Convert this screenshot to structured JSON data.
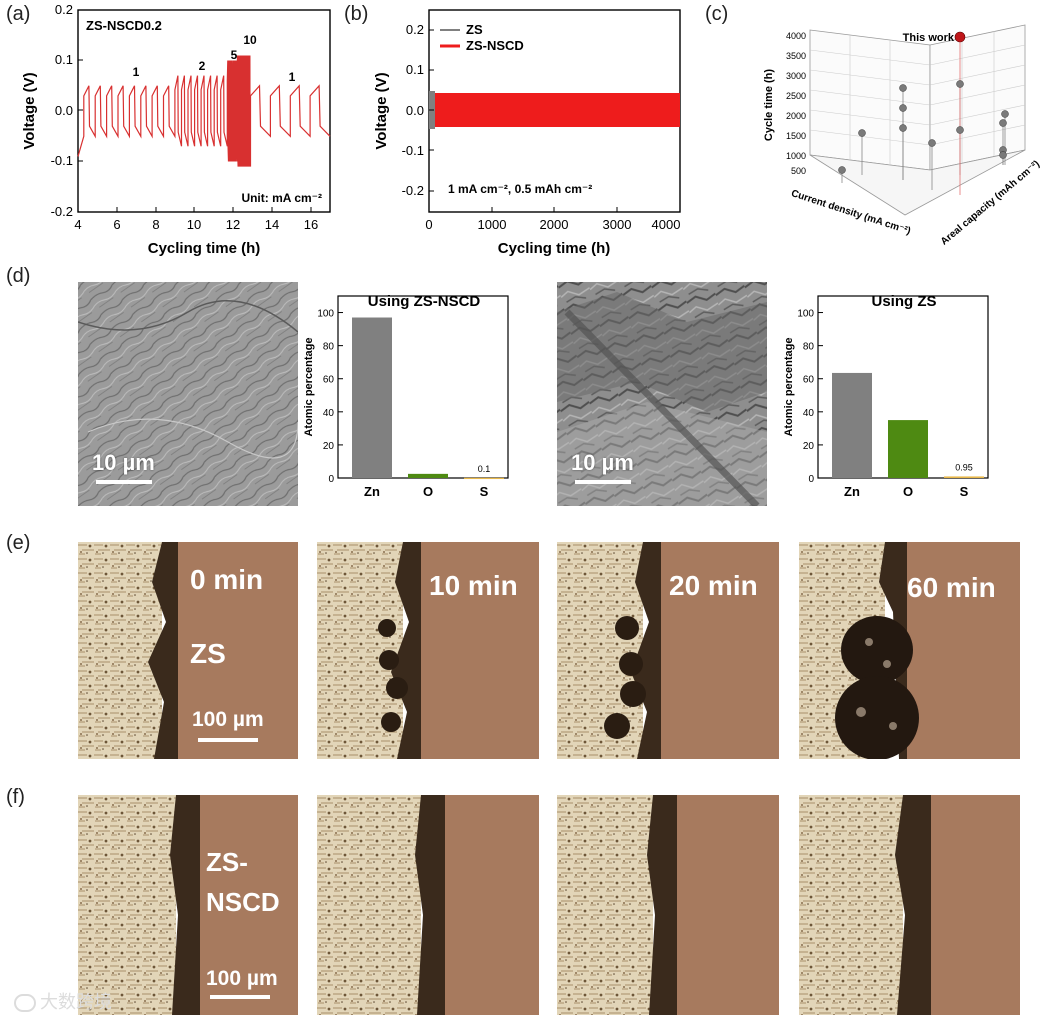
{
  "panel_labels": {
    "a": "(a)",
    "b": "(b)",
    "c": "(c)",
    "d": "(d)",
    "e": "(e)",
    "f": "(f)"
  },
  "panel_a": {
    "title": "ZS-NSCD0.2",
    "xlabel": "Cycling time (h)",
    "ylabel": "Voltage (V)",
    "unit_note": "Unit: mA cm⁻²",
    "segment_labels": [
      "1",
      "2",
      "5",
      "10",
      "1"
    ],
    "xticks": [
      "4",
      "6",
      "8",
      "10",
      "12",
      "14",
      "16"
    ],
    "yticks": [
      "-0.2",
      "-0.1",
      "0.0",
      "0.1",
      "0.2"
    ]
  },
  "panel_b": {
    "xlabel": "Cycling time (h)",
    "ylabel": "Voltage (V)",
    "legend": [
      "ZS",
      "ZS-NSCD"
    ],
    "condition": "1 mA cm⁻², 0.5 mAh cm⁻²",
    "xticks": [
      "0",
      "1000",
      "2000",
      "3000",
      "4000"
    ],
    "yticks": [
      "-0.2",
      "-0.1",
      "0.0",
      "0.1",
      "0.2"
    ]
  },
  "panel_c": {
    "zlabel": "Cycle time (h)",
    "xlabel": "Current density (mA cm⁻²)",
    "ylabel": "Areal capacity (mAh cm⁻²)",
    "highlight_label": "This work",
    "zticks": [
      "500",
      "1000",
      "1500",
      "2000",
      "2500",
      "3000",
      "3500",
      "4000"
    ]
  },
  "panel_d": {
    "scalebar": "10 µm",
    "ylabel": "Atomic percentage",
    "yticks": [
      "0",
      "20",
      "40",
      "60",
      "80",
      "100"
    ],
    "colors": {
      "Zn": "#808080",
      "O": "#4e8a12",
      "S": "#e8b84a"
    }
  },
  "panel_e": {
    "times": [
      "0 min",
      "10 min",
      "20 min",
      "60 min"
    ],
    "sample": "ZS",
    "scalebar": "100 µm"
  },
  "panel_f": {
    "sample_line1": "ZS-",
    "sample_line2": "NSCD",
    "scalebar": "100 µm"
  },
  "watermark": "大数跨境",
  "chart_data": [
    {
      "type": "line",
      "title": "ZS-NSCD0.2",
      "xlabel": "Cycling time (h)",
      "ylabel": "Voltage (V)",
      "xlim": [
        4,
        17
      ],
      "ylim": [
        -0.2,
        0.2
      ],
      "series": [
        {
          "name": "ZS-NSCD",
          "values_note": "square-wave cycling; amplitude ~0.05 V at 1, ~0.07 V at 2, ~0.1 V at 5, ~0.11 V at 10 mA cm⁻²"
        }
      ],
      "rates": [
        1,
        2,
        5,
        10,
        1
      ],
      "rate_regions_h": [
        [
          4.3,
          9.0
        ],
        [
          9.0,
          11.7
        ],
        [
          11.7,
          12.2
        ],
        [
          12.2,
          12.9
        ],
        [
          12.9,
          17.0
        ]
      ]
    },
    {
      "type": "line",
      "xlabel": "Cycling time (h)",
      "ylabel": "Voltage (V)",
      "xlim": [
        0,
        4000
      ],
      "ylim": [
        -0.25,
        0.25
      ],
      "series": [
        {
          "name": "ZS",
          "x": [
            0,
            100
          ],
          "amplitude": [
            0.04,
            0.04
          ]
        },
        {
          "name": "ZS-NSCD",
          "x": [
            0,
            500,
            1000,
            2000,
            3000,
            4000
          ],
          "amplitude": [
            0.03,
            0.033,
            0.028,
            0.025,
            0.026,
            0.027
          ]
        }
      ]
    },
    {
      "type": "scatter",
      "xlabel": "Current density (mA cm⁻²)",
      "ylabel": "Areal capacity (mAh cm⁻²)",
      "zlabel": "Cycle time (h)",
      "points_note": "literature points 1000-2600 h; This work ~4000 h",
      "highlight": {
        "label": "This work",
        "z": 4000
      }
    },
    {
      "type": "bar",
      "title": "Using ZS-NSCD",
      "ylabel": "Atomic percentage",
      "categories": [
        "Zn",
        "O",
        "S"
      ],
      "values": [
        97,
        2.5,
        0.1
      ],
      "data_labels": {
        "S": "0.1"
      },
      "ylim": [
        0,
        110
      ]
    },
    {
      "type": "bar",
      "title": "Using ZS",
      "ylabel": "Atomic percentage",
      "categories": [
        "Zn",
        "O",
        "S"
      ],
      "values": [
        63.5,
        35,
        0.95
      ],
      "data_labels": {
        "S": "0.95"
      },
      "ylim": [
        0,
        110
      ]
    }
  ]
}
